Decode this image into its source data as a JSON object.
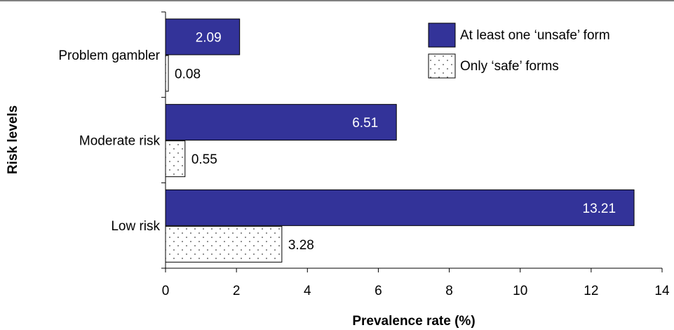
{
  "chart_data": {
    "type": "bar",
    "orientation": "horizontal",
    "categories": [
      "Problem gambler",
      "Moderate risk",
      "Low risk"
    ],
    "series": [
      {
        "name": "At least one ‘unsafe’ form",
        "values": [
          2.09,
          6.51,
          13.21
        ],
        "color": "#333399",
        "pattern": "solid"
      },
      {
        "name": "Only ‘safe’ forms",
        "values": [
          0.08,
          0.55,
          3.28
        ],
        "color": "#ffffff",
        "pattern": "dotted"
      }
    ],
    "data_labels": [
      [
        "2.09",
        "6.51",
        "13.21"
      ],
      [
        "0.08",
        "0.55",
        "3.28"
      ]
    ],
    "xlabel": "Prevalence rate (%)",
    "ylabel": "Risk levels",
    "xlim": [
      0,
      14
    ],
    "xticks": [
      0,
      2,
      4,
      6,
      8,
      10,
      12,
      14
    ],
    "xtick_labels": [
      "0",
      "2",
      "4",
      "6",
      "8",
      "10",
      "12",
      "14"
    ],
    "grid": false,
    "legend_position": "top-right"
  }
}
